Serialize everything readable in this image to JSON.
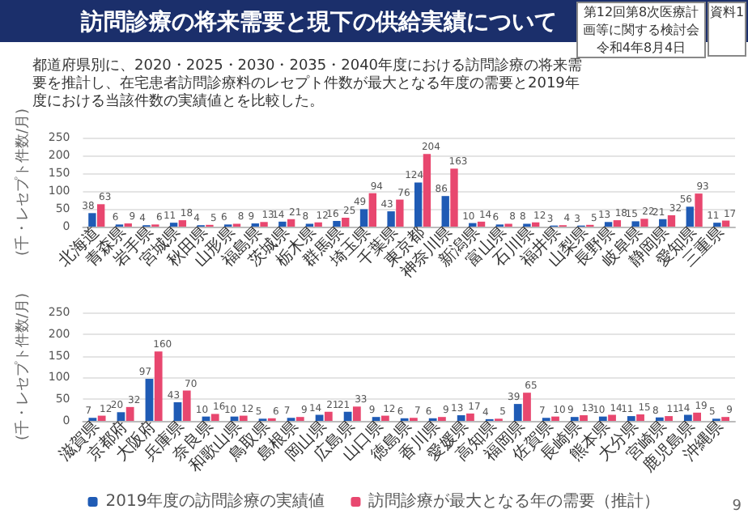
{
  "chart_data": [
    {
      "type": "bar",
      "title": "訪問診療の将来需要と現下の供給実績について",
      "subtitle": "都道府県別に、2020・2025・2030・2035・2040年度における訪問診療の将来需要を推計し、在宅患者訪問診療料のレセプト件数が最大となる年度の需要と2019年度における当該件数の実績値とを比較した。",
      "annotations": [
        "第12回第8次医療計画等に関する検討会",
        "令和4年8月4日",
        "資料1",
        "9"
      ],
      "ylabel": "(千・レセプト件数/月)",
      "ylim": [
        0,
        250
      ],
      "yticks": [
        0,
        50,
        100,
        150,
        200,
        250
      ],
      "grid": "y",
      "data_labels": true,
      "categories": [
        "北海道",
        "青森県",
        "岩手県",
        "宮城県",
        "秋田県",
        "山形県",
        "福島県",
        "茨城県",
        "栃木県",
        "群馬県",
        "埼玉県",
        "千葉県",
        "東京都",
        "神奈川県",
        "新潟県",
        "富山県",
        "石川県",
        "福井県",
        "山梨県",
        "長野県",
        "岐阜県",
        "静岡県",
        "愛知県",
        "三重県"
      ],
      "series": [
        {
          "color": "#1f5bb5",
          "values": [
            38,
            6,
            4,
            11,
            4,
            6,
            9,
            14,
            8,
            16,
            49,
            43,
            124,
            86,
            10,
            6,
            8,
            3,
            3,
            13,
            15,
            21,
            56,
            11
          ]
        },
        {
          "color": "#e8476f",
          "values": [
            63,
            9,
            6,
            18,
            5,
            8,
            13,
            21,
            12,
            25,
            94,
            76,
            204,
            163,
            14,
            8,
            12,
            4,
            5,
            18,
            22,
            32,
            93,
            17
          ]
        }
      ]
    },
    {
      "type": "bar",
      "ylabel": "(千・レセプト件数/月)",
      "ylim": [
        0,
        250
      ],
      "yticks": [
        0,
        50,
        100,
        150,
        200,
        250
      ],
      "grid": "y",
      "data_labels": true,
      "legend": "bottom",
      "categories": [
        "滋賀県",
        "京都府",
        "大阪府",
        "兵庫県",
        "奈良県",
        "和歌山県",
        "鳥取県",
        "島根県",
        "岡山県",
        "広島県",
        "山口県",
        "徳島県",
        "香川県",
        "愛媛県",
        "高知県",
        "福岡県",
        "佐賀県",
        "長崎県",
        "熊本県",
        "大分県",
        "宮崎県",
        "鹿児島県",
        "沖縄県"
      ],
      "series": [
        {
          "name": "2019年度の訪問診療の実績値",
          "color": "#1f5bb5",
          "values": [
            7,
            20,
            97,
            43,
            10,
            10,
            5,
            7,
            14,
            21,
            9,
            6,
            6,
            13,
            4,
            39,
            7,
            9,
            10,
            11,
            8,
            14,
            5
          ]
        },
        {
          "name": "訪問診療が最大となる年の需要（推計）",
          "color": "#e8476f",
          "values": [
            12,
            32,
            160,
            70,
            16,
            12,
            6,
            9,
            21,
            33,
            12,
            7,
            9,
            17,
            5,
            65,
            10,
            13,
            14,
            15,
            11,
            19,
            9
          ]
        }
      ]
    }
  ]
}
